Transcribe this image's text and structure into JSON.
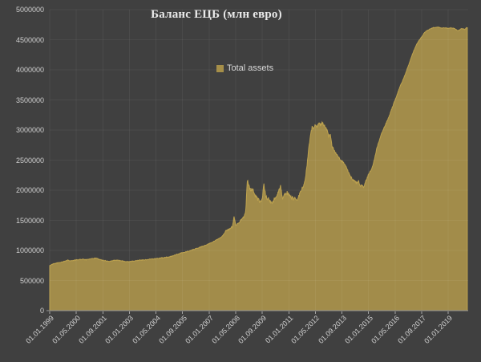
{
  "chart_data": {
    "type": "area",
    "title": "Баланс ЕЦБ (млн евро)",
    "legend": {
      "position": "top-center-inside",
      "entries": [
        {
          "label": "Total assets",
          "swatch_color": "#A68F49"
        }
      ]
    },
    "y_axis": {
      "min": 0,
      "max": 5000000,
      "step": 500000,
      "tick_labels": [
        "0",
        "500000",
        "1000000",
        "1500000",
        "2000000",
        "2500000",
        "3000000",
        "3500000",
        "4000000",
        "4500000",
        "5000000"
      ]
    },
    "x_axis": {
      "unit": "date (dd.mm.yyyy), monthly offsets counted from 1999-01",
      "tick_labels": [
        "01.01.1999",
        "01.05.2000",
        "01.09.2001",
        "01.01.2003",
        "01.05.2004",
        "01.09.2005",
        "01.01.2007",
        "01.05.2008",
        "01.09.2009",
        "01.01.2011",
        "01.05.2012",
        "01.09.2013",
        "01.01.2015",
        "01.05.2016",
        "01.09.2017",
        "01.01.2019"
      ],
      "tick_month_offsets": [
        0,
        16,
        32,
        48,
        64,
        80,
        96,
        112,
        128,
        144,
        160,
        176,
        192,
        208,
        224,
        240
      ],
      "label_rotation_deg": -45,
      "total_months_span": 252
    },
    "grid": true,
    "series": [
      {
        "name": "Total assets",
        "values_unit": "mln EUR",
        "anchors_month_value": [
          [
            0,
            745000
          ],
          [
            1,
            760000
          ],
          [
            2,
            775000
          ],
          [
            4,
            790000
          ],
          [
            6,
            800000
          ],
          [
            8,
            812000
          ],
          [
            10,
            828000
          ],
          [
            11,
            848000
          ],
          [
            12,
            822000
          ],
          [
            14,
            832000
          ],
          [
            16,
            842000
          ],
          [
            18,
            848000
          ],
          [
            20,
            852000
          ],
          [
            22,
            846000
          ],
          [
            24,
            856000
          ],
          [
            26,
            864000
          ],
          [
            28,
            872000
          ],
          [
            30,
            848000
          ],
          [
            32,
            836000
          ],
          [
            34,
            826000
          ],
          [
            36,
            820000
          ],
          [
            38,
            832000
          ],
          [
            40,
            838000
          ],
          [
            42,
            832000
          ],
          [
            44,
            824000
          ],
          [
            46,
            816000
          ],
          [
            48,
            812000
          ],
          [
            50,
            822000
          ],
          [
            52,
            830000
          ],
          [
            54,
            838000
          ],
          [
            56,
            842000
          ],
          [
            58,
            846000
          ],
          [
            60,
            852000
          ],
          [
            62,
            858000
          ],
          [
            64,
            864000
          ],
          [
            66,
            872000
          ],
          [
            68,
            878000
          ],
          [
            70,
            886000
          ],
          [
            72,
            894000
          ],
          [
            74,
            910000
          ],
          [
            76,
            930000
          ],
          [
            78,
            948000
          ],
          [
            80,
            962000
          ],
          [
            82,
            976000
          ],
          [
            84,
            990000
          ],
          [
            86,
            1010000
          ],
          [
            88,
            1030000
          ],
          [
            90,
            1048000
          ],
          [
            92,
            1066000
          ],
          [
            94,
            1088000
          ],
          [
            96,
            1110000
          ],
          [
            98,
            1140000
          ],
          [
            100,
            1170000
          ],
          [
            102,
            1200000
          ],
          [
            104,
            1240000
          ],
          [
            105,
            1280000
          ],
          [
            106,
            1320000
          ],
          [
            108,
            1350000
          ],
          [
            109,
            1380000
          ],
          [
            110,
            1390000
          ],
          [
            111,
            1560000
          ],
          [
            112,
            1420000
          ],
          [
            113,
            1440000
          ],
          [
            114,
            1460000
          ],
          [
            115,
            1500000
          ],
          [
            116,
            1530000
          ],
          [
            117,
            1560000
          ],
          [
            118,
            1640000
          ],
          [
            119,
            2160000
          ],
          [
            120,
            2080000
          ],
          [
            121,
            1990000
          ],
          [
            122,
            2030000
          ],
          [
            123,
            1950000
          ],
          [
            124,
            1890000
          ],
          [
            125,
            1860000
          ],
          [
            126,
            1830000
          ],
          [
            127,
            1820000
          ],
          [
            128,
            1850000
          ],
          [
            129,
            2120000
          ],
          [
            130,
            1900000
          ],
          [
            131,
            1860000
          ],
          [
            132,
            1850000
          ],
          [
            133,
            1810000
          ],
          [
            134,
            1800000
          ],
          [
            135,
            1840000
          ],
          [
            136,
            1870000
          ],
          [
            137,
            1920000
          ],
          [
            138,
            2000000
          ],
          [
            139,
            2090000
          ],
          [
            140,
            1870000
          ],
          [
            141,
            1910000
          ],
          [
            142,
            1950000
          ],
          [
            143,
            1960000
          ],
          [
            144,
            1930000
          ],
          [
            145,
            1890000
          ],
          [
            146,
            1870000
          ],
          [
            147,
            1850000
          ],
          [
            148,
            1870000
          ],
          [
            149,
            1830000
          ],
          [
            150,
            1900000
          ],
          [
            151,
            1960000
          ],
          [
            152,
            2040000
          ],
          [
            153,
            2090000
          ],
          [
            154,
            2200000
          ],
          [
            155,
            2430000
          ],
          [
            156,
            2700000
          ],
          [
            157,
            2890000
          ],
          [
            158,
            3050000
          ],
          [
            159,
            3020000
          ],
          [
            160,
            3090000
          ],
          [
            161,
            3060000
          ],
          [
            162,
            3110000
          ],
          [
            163,
            3080000
          ],
          [
            164,
            3130000
          ],
          [
            165,
            3090000
          ],
          [
            166,
            3050000
          ],
          [
            167,
            3010000
          ],
          [
            168,
            2890000
          ],
          [
            169,
            2930000
          ],
          [
            170,
            2730000
          ],
          [
            172,
            2630000
          ],
          [
            174,
            2550000
          ],
          [
            176,
            2480000
          ],
          [
            178,
            2430000
          ],
          [
            180,
            2290000
          ],
          [
            182,
            2190000
          ],
          [
            184,
            2150000
          ],
          [
            185,
            2110000
          ],
          [
            186,
            2160000
          ],
          [
            187,
            2060000
          ],
          [
            188,
            2100000
          ],
          [
            189,
            2040000
          ],
          [
            190,
            2120000
          ],
          [
            192,
            2260000
          ],
          [
            194,
            2360000
          ],
          [
            195,
            2450000
          ],
          [
            197,
            2700000
          ],
          [
            200,
            2950000
          ],
          [
            204,
            3200000
          ],
          [
            208,
            3500000
          ],
          [
            211,
            3720000
          ],
          [
            214,
            3920000
          ],
          [
            216,
            4070000
          ],
          [
            219,
            4300000
          ],
          [
            221,
            4430000
          ],
          [
            224,
            4550000
          ],
          [
            226,
            4630000
          ],
          [
            229,
            4680000
          ],
          [
            231,
            4700000
          ],
          [
            234,
            4710000
          ],
          [
            236,
            4690000
          ],
          [
            238,
            4700000
          ],
          [
            240,
            4690000
          ],
          [
            242,
            4700000
          ],
          [
            244,
            4680000
          ],
          [
            246,
            4650000
          ],
          [
            248,
            4690000
          ],
          [
            250,
            4670000
          ],
          [
            251,
            4700000
          ]
        ],
        "jitter_segments": [
          {
            "until_month": 106,
            "amplitude": 6000
          },
          {
            "until_month": 117,
            "amplitude": 13000
          },
          {
            "until_month": 154,
            "amplitude": 30000
          },
          {
            "until_month": 168,
            "amplitude": 20000
          },
          {
            "until_month": 192,
            "amplitude": 15000
          },
          {
            "until_month": 216,
            "amplitude": 9000
          },
          {
            "until_month": 252,
            "amplitude": 5000
          }
        ],
        "sample_step_months": 0.25,
        "end_month": 251.5
      }
    ]
  },
  "colors": {
    "background": "#404040",
    "gridline_overlay": "rgba(255,255,255,0.055)",
    "area_fill": "#A28C4A",
    "area_stroke": "#BCA14E",
    "axis_line": "#9A9A9A",
    "tick_mark": "#A8A8A8",
    "axis_text": "#CFCFCF",
    "title_text": "#EAEAEA",
    "legend_text": "#D9D9D9"
  }
}
